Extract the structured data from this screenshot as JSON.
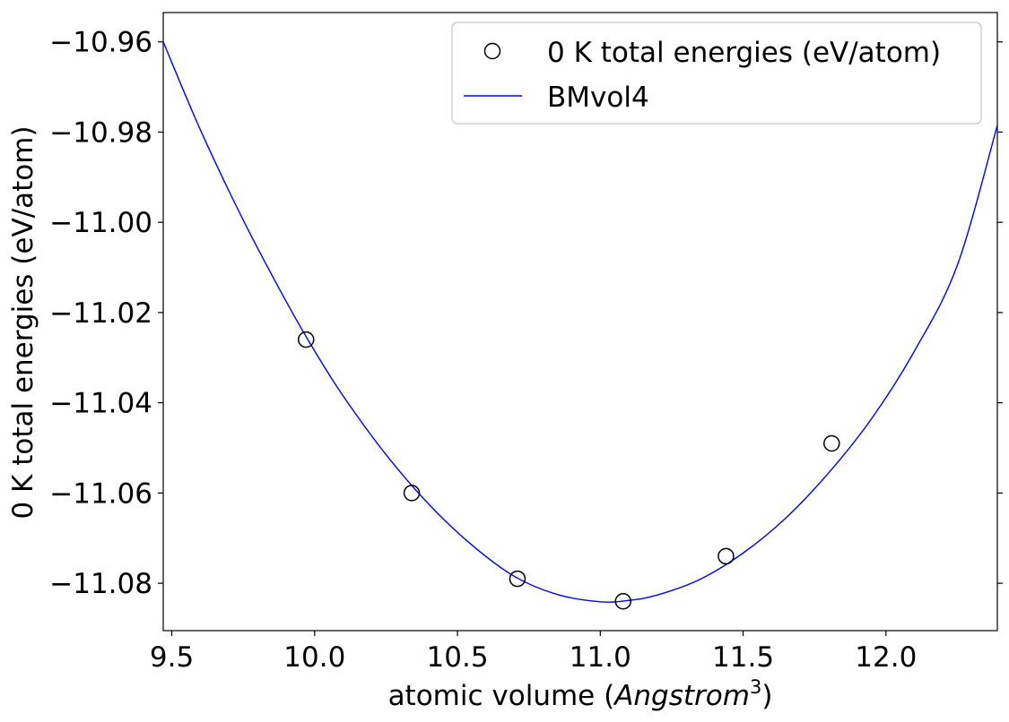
{
  "chart_data": {
    "type": "line",
    "title": "",
    "xlabel_prefix": "atomic volume (",
    "xlabel_italic": "Angstrom",
    "xlabel_sup": "3",
    "xlabel_suffix": ")",
    "ylabel": "0 K total energies (eV/atom)",
    "xlim": [
      9.47,
      12.39
    ],
    "ylim": [
      -11.0905,
      -10.9535
    ],
    "grid": false,
    "legend_position": "top-right",
    "x_ticks": [
      9.5,
      10.0,
      10.5,
      11.0,
      11.5,
      12.0
    ],
    "x_tick_labels": [
      "9.5",
      "10.0",
      "10.5",
      "11.0",
      "11.5",
      "12.0"
    ],
    "y_ticks": [
      -10.96,
      -10.98,
      -11.0,
      -11.02,
      -11.04,
      -11.06,
      -11.08
    ],
    "y_tick_labels": [
      "−10.96",
      "−10.98",
      "−11.00",
      "−11.02",
      "−11.04",
      "−11.06",
      "−11.08"
    ],
    "series": [
      {
        "name": "0 K total energies (eV/atom)",
        "kind": "scatter",
        "marker": "open-circle",
        "color": "#000000",
        "x": [
          9.97,
          10.34,
          10.71,
          11.08,
          11.44,
          11.81
        ],
        "y": [
          -11.026,
          -11.06,
          -11.079,
          -11.084,
          -11.074,
          -11.049
        ]
      },
      {
        "name": "BMvol4",
        "kind": "line",
        "color": "#0000ff",
        "x": [
          9.47,
          9.6,
          9.75,
          9.9,
          10.0,
          10.1,
          10.25,
          10.4,
          10.55,
          10.7,
          10.85,
          11.0,
          11.1,
          11.2,
          11.35,
          11.5,
          11.65,
          11.8,
          11.95,
          12.1,
          12.25,
          12.39
        ],
        "y": [
          -10.96,
          -10.9795,
          -10.9995,
          -11.0175,
          -11.0285,
          -11.0385,
          -11.0515,
          -11.0625,
          -11.0715,
          -11.0785,
          -11.0825,
          -11.0841,
          -11.0838,
          -11.0826,
          -11.0791,
          -11.0733,
          -11.0655,
          -11.0555,
          -11.0435,
          -11.0285,
          -11.0095,
          -10.9785
        ]
      }
    ]
  }
}
